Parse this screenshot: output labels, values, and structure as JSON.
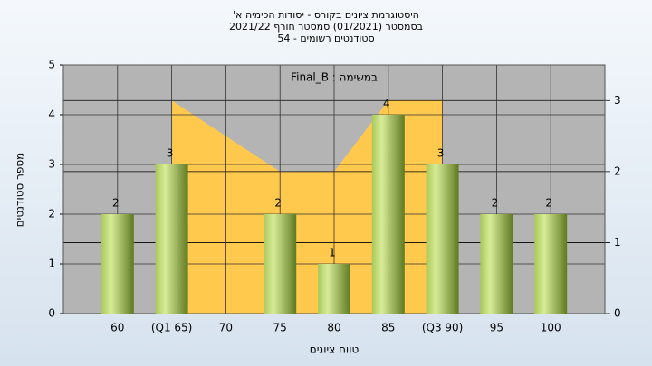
{
  "chart_data": {
    "type": "bar",
    "title_lines": [
      "היסטוגרמת ציונים בקורס - יסודות הכימיה א'",
      "בסמסטר  (01/2021)  סמסטר חורף  2021/22",
      "סטודנטים רשומים - 54"
    ],
    "annotation": "במשימה : Final_B",
    "xlabel": "טווח ציונים",
    "ylabel": "מספר סטודנטים",
    "categories": [
      "60",
      "(Q1 65)",
      "70",
      "75",
      "80",
      "85",
      "(Q3 90)",
      "95",
      "100"
    ],
    "values": [
      2,
      3,
      0,
      2,
      1,
      4,
      3,
      2,
      2
    ],
    "color": "#8fb040",
    "area": {
      "values": [
        null,
        3,
        2.5,
        2,
        2,
        3,
        3,
        null,
        null
      ],
      "color": "#ffc94d",
      "axis": "y2"
    },
    "ylim": [
      0,
      5
    ],
    "yticks": [
      0,
      1,
      2,
      3,
      4,
      5
    ],
    "y2lim": [
      0,
      3.5
    ],
    "y2ticks": [
      0,
      1,
      2,
      3
    ],
    "grid": true
  }
}
